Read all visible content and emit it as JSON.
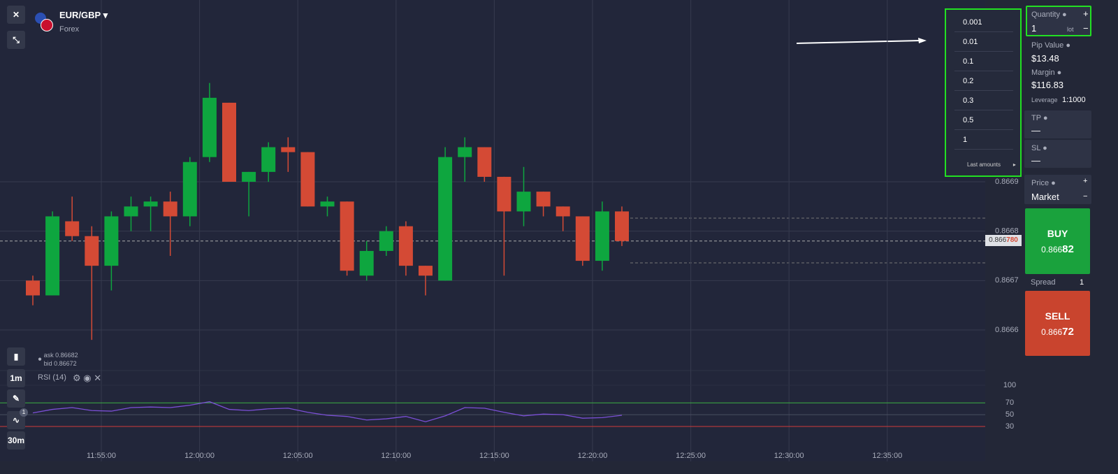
{
  "header": {
    "symbol": "EUR/GBP",
    "market": "Forex"
  },
  "price_axis": {
    "ticks": [
      0.8669,
      0.8668,
      0.8667,
      0.8666
    ]
  },
  "time_axis": {
    "ticks": [
      "11:55:00",
      "12:00:00",
      "12:05:00",
      "12:10:00",
      "12:15:00",
      "12:20:00",
      "12:25:00",
      "12:30:00",
      "12:35:00"
    ]
  },
  "candles": [
    {
      "open": 0.8667,
      "high": 0.86671,
      "low": 0.86665,
      "close": 0.86667
    },
    {
      "open": 0.86667,
      "high": 0.86684,
      "low": 0.86667,
      "close": 0.86683
    },
    {
      "open": 0.86682,
      "high": 0.86687,
      "low": 0.86678,
      "close": 0.86679
    },
    {
      "open": 0.86679,
      "high": 0.86681,
      "low": 0.86658,
      "close": 0.86673
    },
    {
      "open": 0.86673,
      "high": 0.86684,
      "low": 0.86668,
      "close": 0.86683
    },
    {
      "open": 0.86683,
      "high": 0.86687,
      "low": 0.8668,
      "close": 0.86685
    },
    {
      "open": 0.86685,
      "high": 0.86687,
      "low": 0.8668,
      "close": 0.86686
    },
    {
      "open": 0.86686,
      "high": 0.86688,
      "low": 0.86675,
      "close": 0.86683
    },
    {
      "open": 0.86683,
      "high": 0.86695,
      "low": 0.86681,
      "close": 0.86694
    },
    {
      "open": 0.86695,
      "high": 0.8671,
      "low": 0.86694,
      "close": 0.86707
    },
    {
      "open": 0.86706,
      "high": 0.86706,
      "low": 0.8669,
      "close": 0.8669
    },
    {
      "open": 0.8669,
      "high": 0.86692,
      "low": 0.86683,
      "close": 0.86692
    },
    {
      "open": 0.86692,
      "high": 0.86698,
      "low": 0.8669,
      "close": 0.86697
    },
    {
      "open": 0.86697,
      "high": 0.86699,
      "low": 0.86692,
      "close": 0.86696
    },
    {
      "open": 0.86696,
      "high": 0.86696,
      "low": 0.86685,
      "close": 0.86685
    },
    {
      "open": 0.86685,
      "high": 0.86687,
      "low": 0.86683,
      "close": 0.86686
    },
    {
      "open": 0.86686,
      "high": 0.86686,
      "low": 0.86671,
      "close": 0.86672
    },
    {
      "open": 0.86671,
      "high": 0.86678,
      "low": 0.8667,
      "close": 0.86676
    },
    {
      "open": 0.86676,
      "high": 0.86681,
      "low": 0.86675,
      "close": 0.8668
    },
    {
      "open": 0.86681,
      "high": 0.86682,
      "low": 0.86671,
      "close": 0.86673
    },
    {
      "open": 0.86673,
      "high": 0.86673,
      "low": 0.86667,
      "close": 0.86671
    },
    {
      "open": 0.8667,
      "high": 0.86697,
      "low": 0.8667,
      "close": 0.86695
    },
    {
      "open": 0.86695,
      "high": 0.86699,
      "low": 0.8669,
      "close": 0.86697
    },
    {
      "open": 0.86697,
      "high": 0.86697,
      "low": 0.8669,
      "close": 0.86691
    },
    {
      "open": 0.86691,
      "high": 0.86691,
      "low": 0.86671,
      "close": 0.86684
    },
    {
      "open": 0.86684,
      "high": 0.86693,
      "low": 0.86681,
      "close": 0.86688
    },
    {
      "open": 0.86688,
      "high": 0.86688,
      "low": 0.86683,
      "close": 0.86685
    },
    {
      "open": 0.86685,
      "high": 0.86685,
      "low": 0.8668,
      "close": 0.86683
    },
    {
      "open": 0.86683,
      "high": 0.86683,
      "low": 0.86673,
      "close": 0.86674
    },
    {
      "open": 0.86674,
      "high": 0.86686,
      "low": 0.86672,
      "close": 0.86684
    },
    {
      "open": 0.86684,
      "high": 0.86685,
      "low": 0.86677,
      "close": 0.86678
    }
  ],
  "current_price": {
    "value": 0.86678,
    "main": "0.866",
    "tail": "780"
  },
  "quote": {
    "ask": "ask 0.86682",
    "bid": "bid 0.86672"
  },
  "rsi": {
    "label": "RSI (14)",
    "ticks": [
      100,
      70,
      50,
      30
    ],
    "values": [
      53,
      59,
      62,
      57,
      56,
      62,
      63,
      62,
      66,
      72,
      59,
      57,
      60,
      61,
      54,
      49,
      47,
      41,
      43,
      47,
      38,
      48,
      62,
      61,
      54,
      48,
      51,
      50,
      44,
      45,
      49
    ]
  },
  "tools": {
    "timeframe": "1m",
    "interval": "30m",
    "badge": "1"
  },
  "dropdown": {
    "options": [
      "0.001",
      "0.01",
      "0.1",
      "0.2",
      "0.3",
      "0.5",
      "1"
    ],
    "footer": "Last amounts"
  },
  "panel": {
    "quantity_label": "Quantity",
    "quantity": "1",
    "unit": "lot",
    "plus": "+",
    "minus": "−",
    "pip_label": "Pip Value",
    "pip": "$13.48",
    "margin_label": "Margin",
    "margin": "$116.83",
    "leverage_label": "Leverage",
    "leverage": "1:1000",
    "tp_label": "TP",
    "tp": "—",
    "sl_label": "SL",
    "sl": "—",
    "price_label": "Price",
    "price": "Market",
    "buy_label": "BUY",
    "buy_main": "0.866",
    "buy_tail": "82",
    "spread_label": "Spread",
    "spread": "1",
    "sell_label": "SELL",
    "sell_main": "0.866",
    "sell_tail": "72"
  }
}
